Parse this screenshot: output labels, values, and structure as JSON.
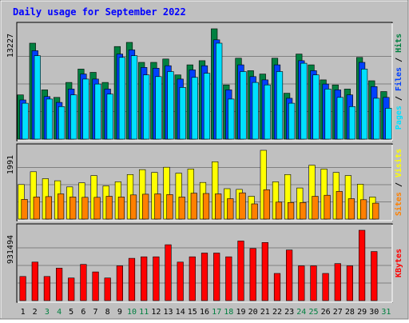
{
  "title": "Daily usage for September 2022",
  "colors": {
    "background": "#c0c0c0",
    "title": "#0000ff",
    "hits": "#008040",
    "files": "#0040ff",
    "pages": "#00e0ff",
    "visits": "#ffff00",
    "sites": "#ff8000",
    "kbytes": "#ff0000",
    "weekend_label": "#008040",
    "weekday_label": "#000000"
  },
  "chart_data": [
    {
      "type": "bar",
      "panel": "top",
      "y_max_label": "13227",
      "ylim": [
        0,
        13227
      ],
      "categories": [
        "1",
        "2",
        "3",
        "4",
        "5",
        "6",
        "7",
        "8",
        "9",
        "10",
        "11",
        "12",
        "13",
        "14",
        "15",
        "16",
        "17",
        "18",
        "19",
        "20",
        "21",
        "22",
        "23",
        "24",
        "25",
        "26",
        "27",
        "28",
        "29",
        "30",
        "31"
      ],
      "weekend_days": [
        "3",
        "4",
        "10",
        "11",
        "17",
        "18",
        "24",
        "25",
        "31"
      ],
      "legend": [
        {
          "label": "Hits",
          "color": "#008040"
        },
        {
          "label": "Files",
          "color": "#0040ff"
        },
        {
          "label": "Pages",
          "color": "#00e0ff"
        }
      ],
      "series": [
        {
          "name": "Hits",
          "values": [
            5300,
            11500,
            5900,
            5000,
            6800,
            8400,
            8000,
            6800,
            11100,
            11600,
            9200,
            9200,
            9600,
            7700,
            8900,
            9400,
            13227,
            6500,
            9700,
            8200,
            7800,
            9700,
            5500,
            10200,
            8900,
            7100,
            6500,
            6000,
            9800,
            7000,
            5700
          ]
        },
        {
          "name": "Files",
          "values": [
            4700,
            10600,
            5100,
            4400,
            6000,
            7800,
            7200,
            6000,
            10200,
            10700,
            8600,
            8500,
            8800,
            7200,
            8300,
            8800,
            11900,
            5900,
            8900,
            7500,
            7100,
            8900,
            4900,
            9400,
            8200,
            6600,
            5900,
            5300,
            9200,
            6300,
            5000
          ]
        },
        {
          "name": "Pages",
          "values": [
            4300,
            10000,
            4800,
            3900,
            5300,
            7200,
            6600,
            5400,
            9800,
            10000,
            7700,
            7500,
            8100,
            6200,
            7400,
            7900,
            11500,
            4800,
            8100,
            6800,
            6500,
            8100,
            4300,
            9100,
            7700,
            6000,
            5000,
            3900,
            8400,
            4900,
            3700
          ]
        }
      ]
    },
    {
      "type": "bar",
      "panel": "middle",
      "y_max_label": "1991",
      "ylim": [
        0,
        1991
      ],
      "categories": [
        "1",
        "2",
        "3",
        "4",
        "5",
        "6",
        "7",
        "8",
        "9",
        "10",
        "11",
        "12",
        "13",
        "14",
        "15",
        "16",
        "17",
        "18",
        "19",
        "20",
        "21",
        "22",
        "23",
        "24",
        "25",
        "26",
        "27",
        "28",
        "29",
        "30",
        "31"
      ],
      "legend": [
        {
          "label": "Visits",
          "color": "#ffff00"
        },
        {
          "label": "Sites",
          "color": "#ff8000"
        }
      ],
      "series": [
        {
          "name": "Visits",
          "values": [
            1000,
            1370,
            1170,
            1110,
            930,
            1050,
            1260,
            960,
            1080,
            1290,
            1430,
            1350,
            1500,
            1330,
            1450,
            1060,
            1660,
            880,
            860,
            660,
            1991,
            1080,
            1290,
            900,
            1560,
            1450,
            1350,
            1260,
            1010,
            640,
            0
          ]
        },
        {
          "name": "Sites",
          "values": [
            570,
            640,
            650,
            730,
            640,
            630,
            630,
            660,
            640,
            700,
            720,
            730,
            710,
            640,
            750,
            740,
            730,
            590,
            760,
            440,
            850,
            490,
            480,
            480,
            660,
            690,
            800,
            590,
            560,
            460,
            0
          ]
        }
      ]
    },
    {
      "type": "bar",
      "panel": "bottom",
      "y_max_label": "931494",
      "ylim": [
        0,
        931494
      ],
      "categories": [
        "1",
        "2",
        "3",
        "4",
        "5",
        "6",
        "7",
        "8",
        "9",
        "10",
        "11",
        "12",
        "13",
        "14",
        "15",
        "16",
        "17",
        "18",
        "19",
        "20",
        "21",
        "22",
        "23",
        "24",
        "25",
        "26",
        "27",
        "28",
        "29",
        "30",
        "31"
      ],
      "legend": [
        {
          "label": "KBytes",
          "color": "#ff0000"
        }
      ],
      "series": [
        {
          "name": "KBytes",
          "values": [
            320000,
            510000,
            320000,
            430000,
            300000,
            480000,
            380000,
            300000,
            460000,
            560000,
            580000,
            580000,
            740000,
            510000,
            580000,
            630000,
            630000,
            580000,
            790000,
            690000,
            770000,
            360000,
            670000,
            460000,
            460000,
            360000,
            490000,
            460000,
            931494,
            650000,
            0
          ]
        }
      ]
    }
  ]
}
